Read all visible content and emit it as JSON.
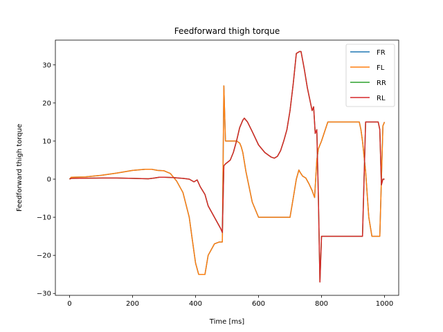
{
  "chart_data": {
    "type": "line",
    "title": "Feedforward thigh torque",
    "xlabel": "Time [ms]",
    "ylabel": "Feedforward thigh torque",
    "xlim": [
      -45,
      1045
    ],
    "ylim": [
      -30.5,
      36.5
    ],
    "xticks": [
      0,
      200,
      400,
      600,
      800,
      1000
    ],
    "yticks": [
      -30,
      -20,
      -10,
      0,
      10,
      20,
      30
    ],
    "grid": false,
    "legend_position": "top-right",
    "series": [
      {
        "name": "FR",
        "color": "#1f77b4",
        "x": [
          0,
          5,
          50,
          100,
          150,
          200,
          240,
          260,
          280,
          300,
          320,
          340,
          360,
          380,
          390,
          400,
          410,
          430,
          440,
          460,
          475,
          485,
          490,
          495,
          500,
          530,
          540,
          545,
          550,
          560,
          580,
          600,
          640,
          700,
          710,
          720,
          728,
          732,
          740,
          750,
          760,
          770,
          778,
          785,
          790,
          800,
          820,
          920,
          925,
          930,
          940,
          950,
          960,
          968,
          972,
          985,
          995,
          1000
        ],
        "y": [
          0,
          0.5,
          0.6,
          1.0,
          1.6,
          2.3,
          2.6,
          2.6,
          2.3,
          2.2,
          1.5,
          -0.5,
          -3.5,
          -10,
          -16,
          -22,
          -25,
          -25,
          -20,
          -17,
          -16.5,
          -16.5,
          24.5,
          10,
          10,
          10,
          9.5,
          8.5,
          7,
          2,
          -6,
          -10,
          -10,
          -10,
          -5,
          0,
          2.4,
          1.8,
          0.8,
          0.3,
          -1.2,
          -3,
          -4.8,
          5,
          8,
          10,
          15,
          15,
          13,
          10,
          2,
          -10,
          -15,
          -15,
          -15,
          -15,
          14,
          15
        ]
      },
      {
        "name": "FL",
        "color": "#ff7f0e",
        "x": [
          0,
          5,
          50,
          100,
          150,
          200,
          240,
          260,
          280,
          300,
          320,
          340,
          360,
          380,
          390,
          400,
          410,
          430,
          440,
          460,
          475,
          485,
          490,
          495,
          500,
          530,
          540,
          545,
          550,
          560,
          580,
          600,
          640,
          700,
          710,
          720,
          728,
          732,
          740,
          750,
          760,
          770,
          778,
          785,
          790,
          800,
          820,
          920,
          925,
          930,
          940,
          950,
          960,
          968,
          972,
          985,
          995,
          1000
        ],
        "y": [
          0,
          0.5,
          0.6,
          1.0,
          1.6,
          2.3,
          2.6,
          2.6,
          2.3,
          2.2,
          1.5,
          -0.5,
          -3.5,
          -10,
          -16,
          -22,
          -25,
          -25,
          -20,
          -17,
          -16.5,
          -16.5,
          24.5,
          10,
          10,
          10,
          9.5,
          8.5,
          7,
          2,
          -6,
          -10,
          -10,
          -10,
          -5,
          0,
          2.4,
          1.8,
          0.8,
          0.3,
          -1.2,
          -3,
          -4.8,
          5,
          8,
          10,
          15,
          15,
          13,
          10,
          2,
          -10,
          -15,
          -15,
          -15,
          -15,
          14,
          15
        ]
      },
      {
        "name": "RR",
        "color": "#2ca02c",
        "x": [
          0,
          5,
          100,
          150,
          200,
          250,
          270,
          285,
          300,
          330,
          360,
          380,
          395,
          405,
          415,
          430,
          440,
          460,
          480,
          485,
          490,
          495,
          510,
          520,
          530,
          540,
          550,
          555,
          565,
          580,
          600,
          620,
          640,
          650,
          660,
          670,
          680,
          690,
          700,
          710,
          720,
          730,
          735,
          745,
          755,
          765,
          770,
          775,
          780,
          785,
          790,
          795,
          800,
          805,
          815,
          920,
          930,
          940,
          950,
          960,
          975,
          980,
          985,
          990,
          995,
          1000
        ],
        "y": [
          0,
          0.2,
          0.3,
          0.3,
          0.2,
          0.1,
          0.3,
          0.5,
          0.5,
          0.4,
          0.2,
          0,
          -0.7,
          -0.2,
          -2,
          -4,
          -7,
          -10,
          -13,
          -14,
          3.5,
          4,
          5,
          7,
          10,
          13.5,
          15.5,
          16,
          15,
          12.5,
          9,
          7,
          5.8,
          5.5,
          6,
          7.5,
          10,
          13,
          18,
          25,
          33,
          33.5,
          33.5,
          29,
          24,
          20,
          18,
          19,
          12,
          13,
          -5,
          -27,
          -15,
          -15,
          -15,
          -15,
          -15,
          15,
          15,
          15,
          15,
          15,
          13,
          -1.5,
          0,
          0
        ]
      },
      {
        "name": "RL",
        "color": "#d62728",
        "x": [
          0,
          5,
          100,
          150,
          200,
          250,
          270,
          285,
          300,
          330,
          360,
          380,
          395,
          405,
          415,
          430,
          440,
          460,
          480,
          485,
          490,
          495,
          510,
          520,
          530,
          540,
          550,
          555,
          565,
          580,
          600,
          620,
          640,
          650,
          660,
          670,
          680,
          690,
          700,
          710,
          720,
          730,
          735,
          745,
          755,
          765,
          770,
          775,
          780,
          785,
          790,
          795,
          800,
          805,
          815,
          920,
          930,
          940,
          950,
          960,
          975,
          980,
          985,
          990,
          995,
          1000
        ],
        "y": [
          0,
          0.2,
          0.3,
          0.3,
          0.2,
          0.1,
          0.3,
          0.5,
          0.5,
          0.4,
          0.2,
          0,
          -0.7,
          -0.2,
          -2,
          -4,
          -7,
          -10,
          -13,
          -14,
          3.5,
          4,
          5,
          7,
          10,
          13.5,
          15.5,
          16,
          15,
          12.5,
          9,
          7,
          5.8,
          5.5,
          6,
          7.5,
          10,
          13,
          18,
          25,
          33,
          33.5,
          33.5,
          29,
          24,
          20,
          18,
          19,
          12,
          13,
          -5,
          -27,
          -15,
          -15,
          -15,
          -15,
          -15,
          15,
          15,
          15,
          15,
          15,
          13,
          -1.5,
          0,
          0
        ]
      }
    ]
  }
}
